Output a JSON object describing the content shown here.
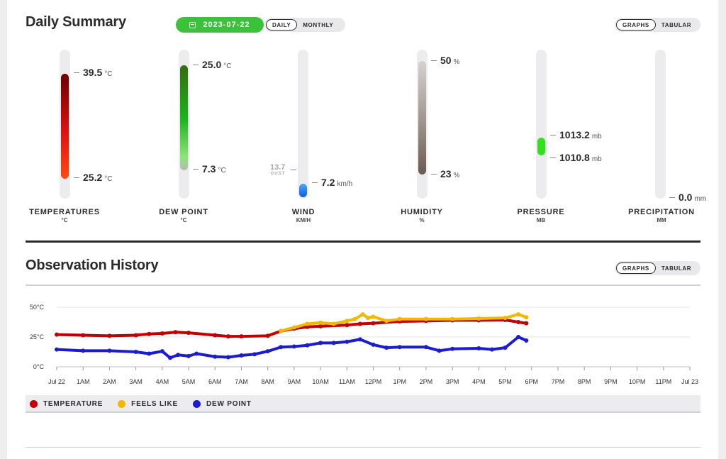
{
  "summary": {
    "title": "Daily Summary",
    "date": "2023-07-22",
    "calendar_icon": "calendar-icon",
    "period_toggle": [
      "DAILY",
      "MONTHLY"
    ],
    "view_toggle": [
      "GRAPHS",
      "TABULAR"
    ]
  },
  "metrics": {
    "temperature": {
      "name": "TEMPERATURES",
      "unit_label": "°C",
      "high": "39.5",
      "low": "25.2",
      "unit": "°C"
    },
    "dew_point": {
      "name": "DEW POINT",
      "unit_label": "°C",
      "high": "25.0",
      "low": "7.3",
      "unit": "°C"
    },
    "wind": {
      "name": "WIND",
      "unit_label": "KM/H",
      "gust": "13.7",
      "gust_label": "GUST",
      "speed": "7.2",
      "unit": "km/h"
    },
    "humidity": {
      "name": "HUMIDITY",
      "unit_label": "%",
      "high": "50",
      "low": "23",
      "unit": "%"
    },
    "pressure": {
      "name": "PRESSURE",
      "unit_label": "MB",
      "high": "1013.2",
      "low": "1010.8",
      "unit": "mb"
    },
    "precipitation": {
      "name": "PRECIPITATION",
      "unit_label": "MM",
      "value": "0.0",
      "unit": "mm"
    }
  },
  "history": {
    "title": "Observation History",
    "view_toggle": [
      "GRAPHS",
      "TABULAR"
    ]
  },
  "colors": {
    "temperature": "#c00000",
    "feels_like": "#f0b800",
    "dew_point": "#1c1ccf",
    "accent": "#3cc13b"
  },
  "chart_data": {
    "type": "line",
    "y_ticks": [
      "50°C",
      "25°C",
      "0°C"
    ],
    "ylim": [
      0,
      50
    ],
    "x_ticks": [
      "Jul 22",
      "1AM",
      "2AM",
      "3AM",
      "4AM",
      "5AM",
      "6AM",
      "7AM",
      "8AM",
      "9AM",
      "10AM",
      "11AM",
      "12PM",
      "1PM",
      "2PM",
      "3PM",
      "4PM",
      "5PM",
      "6PM",
      "7PM",
      "8PM",
      "9PM",
      "10PM",
      "11PM",
      "Jul 23"
    ],
    "xlim": [
      0,
      24
    ],
    "series": [
      {
        "name": "TEMPERATURE",
        "color": "#c00000",
        "x": [
          0,
          1,
          2,
          3,
          3.5,
          4,
          4.5,
          5,
          6,
          6.5,
          7,
          8,
          8.5,
          9,
          9.5,
          10,
          11,
          11.5,
          12,
          13,
          14,
          15,
          16,
          17,
          17.5,
          17.8
        ],
        "y": [
          27,
          26.5,
          26,
          26.5,
          27.5,
          28,
          29,
          28.5,
          26.5,
          25.5,
          25.5,
          26,
          30,
          32,
          33.5,
          34,
          35,
          36,
          36.5,
          38,
          38.5,
          39,
          39,
          39.3,
          37.5,
          36.5
        ]
      },
      {
        "name": "FEELS LIKE",
        "color": "#f0b800",
        "x": [
          8.5,
          9,
          9.5,
          10,
          10.5,
          11,
          11.3,
          11.6,
          11.8,
          12,
          12.5,
          13,
          14,
          15,
          16,
          17,
          17.5,
          17.8
        ],
        "y": [
          30,
          33,
          36,
          37,
          36,
          38.5,
          40,
          44,
          41,
          42,
          38.5,
          40,
          40,
          40,
          40.5,
          41,
          44,
          41.5
        ]
      },
      {
        "name": "DEW POINT",
        "color": "#1c1ccf",
        "x": [
          0,
          1,
          2,
          3,
          3.5,
          4,
          4.3,
          4.6,
          5,
          5.3,
          6,
          6.5,
          7,
          7.5,
          8,
          8.5,
          9,
          9.5,
          10,
          10.5,
          11,
          11.5,
          12,
          12.5,
          13,
          14,
          14.5,
          15,
          16,
          16.5,
          17,
          17.5,
          17.8
        ],
        "y": [
          14.5,
          13.5,
          13.5,
          12.5,
          11,
          13,
          7.5,
          10,
          9,
          11,
          8.5,
          8,
          9.5,
          10.5,
          13,
          16.5,
          17,
          18,
          20,
          20,
          21,
          23,
          18.5,
          16,
          16.5,
          16.5,
          13.5,
          15,
          15.5,
          14.5,
          16,
          25,
          22
        ]
      }
    ],
    "legend_position": "bottom"
  }
}
